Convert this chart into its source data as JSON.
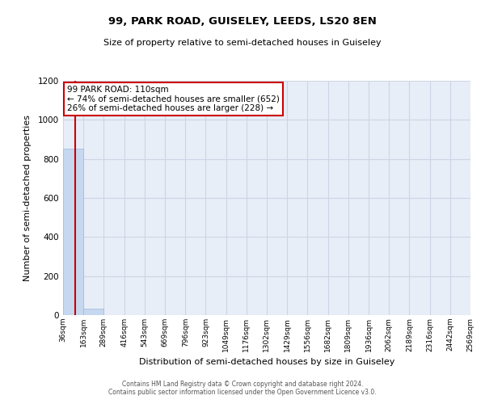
{
  "title": "99, PARK ROAD, GUISELEY, LEEDS, LS20 8EN",
  "subtitle": "Size of property relative to semi-detached houses in Guiseley",
  "xlabel": "Distribution of semi-detached houses by size in Guiseley",
  "ylabel": "Number of semi-detached properties",
  "bar_color": "#c5d8f0",
  "bar_edge_color": "#a0b8d8",
  "bins": [
    36,
    163,
    289,
    416,
    543,
    669,
    796,
    923,
    1049,
    1176,
    1302,
    1429,
    1556,
    1682,
    1809,
    1936,
    2062,
    2189,
    2316,
    2442,
    2569
  ],
  "bar_heights": [
    852,
    35,
    0,
    0,
    0,
    0,
    0,
    0,
    0,
    0,
    0,
    0,
    0,
    0,
    0,
    0,
    0,
    0,
    0,
    0
  ],
  "property_size": 110,
  "annotation_text": "99 PARK ROAD: 110sqm\n← 74% of semi-detached houses are smaller (652)\n26% of semi-detached houses are larger (228) →",
  "annotation_box_color": "#ffffff",
  "annotation_box_edge": "#cc0000",
  "vline_color": "#cc0000",
  "ylim": [
    0,
    1200
  ],
  "yticks": [
    0,
    200,
    400,
    600,
    800,
    1000,
    1200
  ],
  "grid_color": "#cdd5e5",
  "background_color": "#e8eef8",
  "footer_line1": "Contains HM Land Registry data © Crown copyright and database right 2024.",
  "footer_line2": "Contains public sector information licensed under the Open Government Licence v3.0."
}
